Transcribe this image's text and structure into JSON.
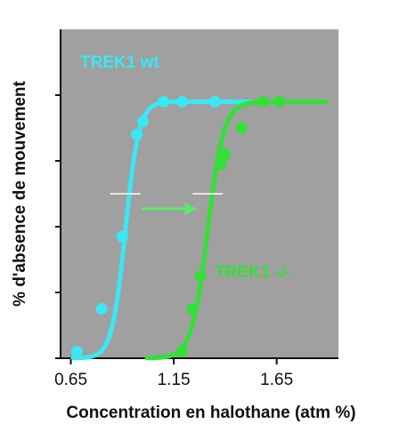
{
  "chart_data": {
    "type": "line",
    "xlabel": "Concentration en halothane (atm %)",
    "ylabel": "% d'absence de mouvement",
    "xlim": [
      0.6,
      1.95
    ],
    "ylim": [
      0,
      100
    ],
    "x_ticks": [
      0.65,
      1.15,
      1.65
    ],
    "x_tick_labels": [
      "0.65",
      "1.15",
      "1.65"
    ],
    "y_ticks": [
      0,
      20,
      40,
      60,
      80
    ],
    "grid": false,
    "plot_background": "#a0a0a0",
    "annotation": "arrow from TREK1 wt EC50 to TREK1 -/- EC50 at 50%",
    "series": [
      {
        "name": "TREK1 wt",
        "color": "#38e8f5",
        "points": [
          [
            0.68,
            2
          ],
          [
            0.8,
            15
          ],
          [
            0.9,
            37
          ],
          [
            0.97,
            68
          ],
          [
            1.0,
            72
          ],
          [
            1.1,
            78
          ],
          [
            1.19,
            78
          ],
          [
            1.35,
            78
          ]
        ],
        "curve_x_start": 0.66,
        "curve_x_end": 1.52,
        "min": 0,
        "max": 78,
        "ec50": 0.915,
        "slope": 0.033
      },
      {
        "name": "TREK1 -/-",
        "color": "#33e036",
        "points": [
          [
            1.19,
            2
          ],
          [
            1.24,
            15
          ],
          [
            1.28,
            25
          ],
          [
            1.38,
            59
          ],
          [
            1.4,
            62
          ],
          [
            1.48,
            70
          ],
          [
            1.58,
            78
          ],
          [
            1.66,
            78
          ]
        ],
        "curve_x_start": 1.02,
        "curve_x_end": 1.89,
        "min": 0,
        "max": 78,
        "ec50": 1.315,
        "slope": 0.039
      }
    ]
  }
}
